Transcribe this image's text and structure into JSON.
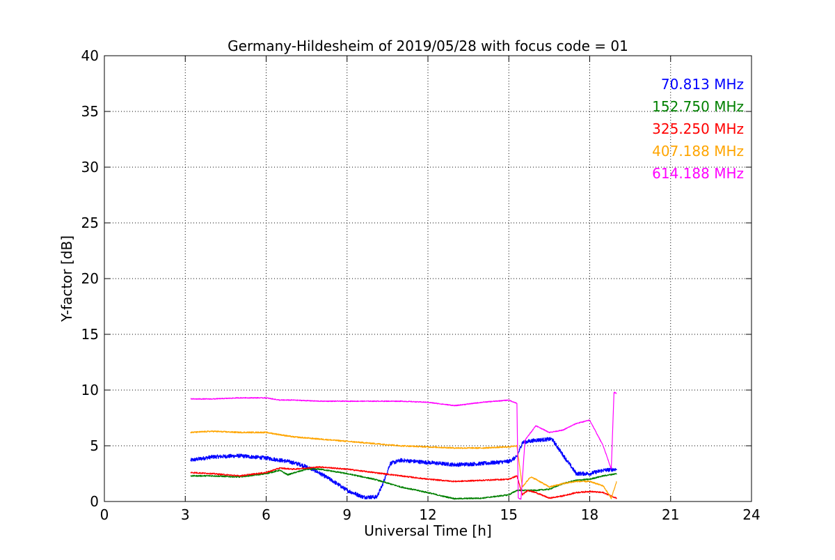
{
  "chart_data": {
    "type": "line",
    "title": "Germany-Hildesheim of 2019/05/28 with focus code = 01",
    "xlabel": "Universal Time [h]",
    "ylabel": "Y-factor [dB]",
    "xlim": [
      0,
      24
    ],
    "ylim": [
      0,
      40
    ],
    "xticks": [
      0,
      3,
      6,
      9,
      12,
      15,
      18,
      21,
      24
    ],
    "yticks": [
      0,
      5,
      10,
      15,
      20,
      25,
      30,
      35,
      40
    ],
    "grid": true,
    "legend_placement": "top-right",
    "series": [
      {
        "name": "70.813 MHz",
        "color": "#0000ff",
        "noise": 0.35,
        "x": [
          3.2,
          4.0,
          5.0,
          6.0,
          6.8,
          7.3,
          7.8,
          8.5,
          9.0,
          9.6,
          10.1,
          10.3,
          10.6,
          11.0,
          12.0,
          13.0,
          14.0,
          15.0,
          15.3,
          15.5,
          16.0,
          16.6,
          17.0,
          17.5,
          18.0,
          18.5,
          19.0
        ],
        "y": [
          3.7,
          4.0,
          4.1,
          3.9,
          3.6,
          3.3,
          2.8,
          1.8,
          1.0,
          0.4,
          0.4,
          1.4,
          3.4,
          3.7,
          3.5,
          3.3,
          3.4,
          3.6,
          4.0,
          5.3,
          5.5,
          5.6,
          4.2,
          2.5,
          2.5,
          2.8,
          2.9
        ]
      },
      {
        "name": "152.750 MHz",
        "color": "#008000",
        "noise": 0.12,
        "x": [
          3.2,
          4.0,
          5.0,
          6.0,
          6.5,
          6.8,
          7.5,
          8.0,
          9.0,
          10.0,
          11.0,
          12.0,
          12.5,
          13.0,
          14.0,
          15.0,
          15.3,
          15.6,
          16.0,
          16.5,
          17.0,
          17.5,
          18.0,
          18.5,
          19.0
        ],
        "y": [
          2.3,
          2.3,
          2.2,
          2.5,
          2.8,
          2.4,
          2.9,
          2.9,
          2.5,
          2.0,
          1.3,
          0.8,
          0.5,
          0.25,
          0.3,
          0.6,
          1.0,
          1.0,
          1.0,
          1.1,
          1.6,
          1.9,
          2.0,
          2.3,
          2.5
        ]
      },
      {
        "name": "325.250 MHz",
        "color": "#ff0000",
        "noise": 0.12,
        "x": [
          3.2,
          4.0,
          5.0,
          6.0,
          6.5,
          7.0,
          8.0,
          9.0,
          10.0,
          11.0,
          12.0,
          13.0,
          14.0,
          15.0,
          15.3,
          15.5,
          15.7,
          16.0,
          16.5,
          17.0,
          17.5,
          18.0,
          18.5,
          19.0
        ],
        "y": [
          2.6,
          2.5,
          2.3,
          2.6,
          3.0,
          2.9,
          3.1,
          2.9,
          2.6,
          2.3,
          2.0,
          1.8,
          1.9,
          2.0,
          2.3,
          0.6,
          1.0,
          0.8,
          0.3,
          0.5,
          0.8,
          0.9,
          0.8,
          0.3
        ]
      },
      {
        "name": "407.188 MHz",
        "color": "#ffa500",
        "noise": 0.12,
        "x": [
          3.2,
          4.0,
          5.0,
          6.0,
          6.5,
          7.0,
          8.0,
          9.0,
          10.0,
          11.0,
          12.0,
          13.0,
          14.0,
          15.0,
          15.3,
          15.5,
          15.8,
          16.0,
          16.5,
          17.0,
          17.5,
          18.0,
          18.5,
          18.8,
          19.0
        ],
        "y": [
          6.2,
          6.3,
          6.2,
          6.2,
          6.0,
          5.8,
          5.6,
          5.4,
          5.2,
          5.0,
          4.9,
          4.8,
          4.8,
          4.9,
          5.0,
          1.3,
          2.2,
          2.0,
          1.3,
          1.6,
          1.8,
          1.8,
          1.4,
          0.3,
          1.8
        ]
      },
      {
        "name": "614.188 MHz",
        "color": "#ff00ff",
        "noise": 0.08,
        "x": [
          3.2,
          4.0,
          5.0,
          6.0,
          6.5,
          7.0,
          8.0,
          9.0,
          10.0,
          11.0,
          12.0,
          13.0,
          14.0,
          15.0,
          15.3,
          15.35,
          15.45,
          15.6,
          16.0,
          16.5,
          17.0,
          17.5,
          18.0,
          18.5,
          18.8,
          18.9,
          19.0
        ],
        "y": [
          9.2,
          9.2,
          9.3,
          9.3,
          9.1,
          9.1,
          9.0,
          9.0,
          9.0,
          9.0,
          8.9,
          8.6,
          8.9,
          9.1,
          8.8,
          0.3,
          0.2,
          5.5,
          6.8,
          6.2,
          6.4,
          7.0,
          7.3,
          5.0,
          2.9,
          9.8,
          9.7
        ]
      }
    ]
  }
}
